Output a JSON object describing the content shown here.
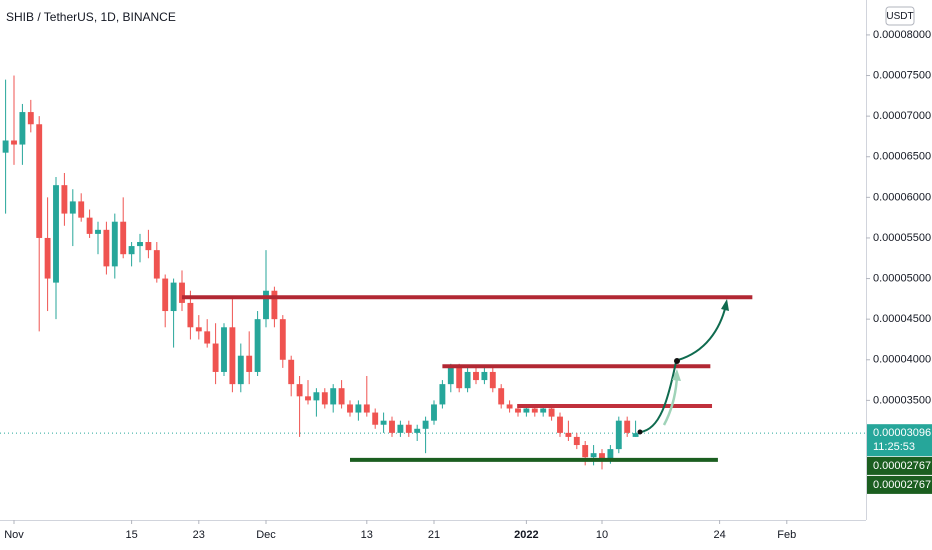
{
  "chart_data": {
    "type": "candlestick",
    "title": "SHIB / TetherUS, 1D, BINANCE",
    "currency": "USDT",
    "up_color": "#26a69a",
    "down_color": "#ef5350",
    "xlim": [
      -1.667,
      101.43
    ],
    "ylim": [
      2.027e-05,
      8.43e-05
    ],
    "xticks": [
      {
        "value": 0,
        "label": "Nov"
      },
      {
        "value": 14,
        "label": "15"
      },
      {
        "value": 22,
        "label": "23"
      },
      {
        "value": 30,
        "label": "Dec"
      },
      {
        "value": 42,
        "label": "13"
      },
      {
        "value": 50,
        "label": "21"
      },
      {
        "value": 61,
        "label": "2022"
      },
      {
        "value": 70,
        "label": "10"
      },
      {
        "value": 84,
        "label": "24"
      },
      {
        "value": 92,
        "label": "Feb"
      }
    ],
    "yticks": [
      {
        "value": 3.5e-05,
        "label": "0.00003500"
      },
      {
        "value": 4e-05,
        "label": "0.00004000"
      },
      {
        "value": 4.5e-05,
        "label": "0.00004500"
      },
      {
        "value": 5e-05,
        "label": "0.00005000"
      },
      {
        "value": 5.5e-05,
        "label": "0.00005500"
      },
      {
        "value": 6e-05,
        "label": "0.00006000"
      },
      {
        "value": 6.5e-05,
        "label": "0.00006500"
      },
      {
        "value": 7e-05,
        "label": "0.00007000"
      },
      {
        "value": 7.5e-05,
        "label": "0.00007500"
      },
      {
        "value": 8e-05,
        "label": "0.00008000"
      }
    ],
    "x": [
      -1,
      0,
      1,
      2,
      3,
      4,
      5,
      6,
      7,
      8,
      9,
      10,
      11,
      12,
      13,
      14,
      15,
      16,
      17,
      18,
      19,
      20,
      21,
      22,
      23,
      24,
      25,
      26,
      27,
      28,
      29,
      30,
      31,
      32,
      33,
      34,
      35,
      36,
      37,
      38,
      39,
      40,
      41,
      42,
      43,
      44,
      45,
      46,
      47,
      48,
      49,
      50,
      51,
      52,
      53,
      54,
      55,
      56,
      57,
      58,
      59,
      60,
      61,
      62,
      63,
      64,
      65,
      66,
      67,
      68,
      69,
      70,
      71,
      72,
      73,
      74
    ],
    "open": [
      6.55e-05,
      6.7e-05,
      6.65e-05,
      7.05e-05,
      6.9e-05,
      5.5e-05,
      4.95e-05,
      6.15e-05,
      5.8e-05,
      5.95e-05,
      5.75e-05,
      5.55e-05,
      5.6e-05,
      5.15e-05,
      5.7e-05,
      5.3e-05,
      5.4e-05,
      5.45e-05,
      5.35e-05,
      5e-05,
      4.6e-05,
      4.95e-05,
      4.7e-05,
      4.4e-05,
      4.35e-05,
      4.2e-05,
      3.85e-05,
      4.4e-05,
      3.7e-05,
      4.05e-05,
      3.85e-05,
      4.5e-05,
      4.85e-05,
      4.5e-05,
      4e-05,
      3.7e-05,
      3.55e-05,
      3.5e-05,
      3.6e-05,
      3.45e-05,
      3.65e-05,
      3.45e-05,
      3.35e-05,
      3.45e-05,
      3.35e-05,
      3.2e-05,
      3.25e-05,
      3.1e-05,
      3.2e-05,
      3.1e-05,
      3.15e-05,
      3.25e-05,
      3.45e-05,
      3.7e-05,
      3.9e-05,
      3.65e-05,
      3.85e-05,
      3.75e-05,
      3.85e-05,
      3.65e-05,
      3.45e-05,
      3.4e-05,
      3.35e-05,
      3.4e-05,
      3.35e-05,
      3.4e-05,
      3.3e-05,
      3.1e-05,
      3.05e-05,
      2.95e-05,
      2.8e-05,
      2.85e-05,
      2.75e-05,
      2.9e-05,
      3.25e-05,
      3.05e-05
    ],
    "high": [
      7.45e-05,
      7.5e-05,
      7.15e-05,
      7.2e-05,
      7e-05,
      6e-05,
      6.25e-05,
      6.3e-05,
      6.1e-05,
      6.05e-05,
      5.85e-05,
      5.7e-05,
      5.7e-05,
      5.8e-05,
      6e-05,
      5.45e-05,
      5.55e-05,
      5.6e-05,
      5.45e-05,
      5.05e-05,
      5e-05,
      5.1e-05,
      4.85e-05,
      4.55e-05,
      4.5e-05,
      4.45e-05,
      4.45e-05,
      4.75e-05,
      4.2e-05,
      4.35e-05,
      4.6e-05,
      5.35e-05,
      4.9e-05,
      4.55e-05,
      4.05e-05,
      3.8e-05,
      3.75e-05,
      3.65e-05,
      3.65e-05,
      3.7e-05,
      3.75e-05,
      3.5e-05,
      3.5e-05,
      3.8e-05,
      3.4e-05,
      3.35e-05,
      3.3e-05,
      3.25e-05,
      3.25e-05,
      3.2e-05,
      3.3e-05,
      3.5e-05,
      3.75e-05,
      3.95e-05,
      3.95e-05,
      3.9e-05,
      3.9e-05,
      3.9e-05,
      3.9e-05,
      3.7e-05,
      3.5e-05,
      3.45e-05,
      3.45e-05,
      3.45e-05,
      3.45e-05,
      3.45e-05,
      3.35e-05,
      3.25e-05,
      3.1e-05,
      3e-05,
      2.95e-05,
      2.9e-05,
      2.95e-05,
      3.3e-05,
      3.3e-05,
      3.25e-05
    ],
    "low": [
      5.8e-05,
      6.4e-05,
      6.4e-05,
      6.8e-05,
      4.35e-05,
      4.6e-05,
      4.5e-05,
      5.65e-05,
      5.4e-05,
      5.7e-05,
      5.5e-05,
      5.3e-05,
      5.05e-05,
      5e-05,
      5.25e-05,
      5.15e-05,
      5.2e-05,
      5.25e-05,
      4.95e-05,
      4.4e-05,
      4.15e-05,
      4.6e-05,
      4.25e-05,
      4.25e-05,
      4.15e-05,
      3.7e-05,
      3.8e-05,
      3.6e-05,
      3.6e-05,
      3.7e-05,
      3.8e-05,
      4.4e-05,
      4.4e-05,
      3.9e-05,
      3.55e-05,
      3.05e-05,
      3.45e-05,
      3.3e-05,
      3.4e-05,
      3.35e-05,
      3.4e-05,
      3.3e-05,
      3.25e-05,
      3.3e-05,
      3.15e-05,
      3.1e-05,
      3.05e-05,
      3.05e-05,
      3.05e-05,
      3e-05,
      2.85e-05,
      3.2e-05,
      3.4e-05,
      3.6e-05,
      3.6e-05,
      3.6e-05,
      3.7e-05,
      3.7e-05,
      3.6e-05,
      3.4e-05,
      3.35e-05,
      3.3e-05,
      3.3e-05,
      3.3e-05,
      3.3e-05,
      3.25e-05,
      3.05e-05,
      3e-05,
      2.9e-05,
      2.7e-05,
      2.7e-05,
      2.65e-05,
      2.72e-05,
      2.85e-05,
      3.05e-05,
      3.05e-05
    ],
    "close": [
      6.7e-05,
      6.65e-05,
      7.05e-05,
      6.9e-05,
      5.5e-05,
      5e-05,
      6.15e-05,
      5.8e-05,
      5.95e-05,
      5.75e-05,
      5.55e-05,
      5.6e-05,
      5.15e-05,
      5.7e-05,
      5.3e-05,
      5.4e-05,
      5.45e-05,
      5.35e-05,
      5e-05,
      4.6e-05,
      4.95e-05,
      4.7e-05,
      4.4e-05,
      4.35e-05,
      4.2e-05,
      3.85e-05,
      4.4e-05,
      3.7e-05,
      4.05e-05,
      3.85e-05,
      4.5e-05,
      4.85e-05,
      4.5e-05,
      4e-05,
      3.7e-05,
      3.55e-05,
      3.5e-05,
      3.6e-05,
      3.45e-05,
      3.65e-05,
      3.45e-05,
      3.35e-05,
      3.45e-05,
      3.35e-05,
      3.2e-05,
      3.25e-05,
      3.1e-05,
      3.2e-05,
      3.1e-05,
      3.15e-05,
      3.25e-05,
      3.45e-05,
      3.7e-05,
      3.9e-05,
      3.65e-05,
      3.85e-05,
      3.75e-05,
      3.85e-05,
      3.65e-05,
      3.45e-05,
      3.4e-05,
      3.35e-05,
      3.4e-05,
      3.35e-05,
      3.4e-05,
      3.3e-05,
      3.1e-05,
      3.05e-05,
      2.95e-05,
      2.8e-05,
      2.85e-05,
      2.75e-05,
      2.9e-05,
      3.25e-05,
      3.1e-05,
      3.096e-05
    ],
    "levels": [
      {
        "value": 4.77e-05,
        "x": [
          20,
          87.9
        ],
        "color": "#b22833"
      },
      {
        "value": 3.92e-05,
        "x": [
          51,
          82.9
        ],
        "color": "#b22833"
      },
      {
        "value": 3.43e-05,
        "x": [
          59.9,
          83.1
        ],
        "color": "#c0303c"
      },
      {
        "value": 2.767e-05,
        "x": [
          40,
          83.8
        ],
        "color": "#1b5e20"
      }
    ],
    "last_price": {
      "value": 3.096e-05,
      "label": "0.00003096",
      "countdown": "11:25:53",
      "color": "#26a69a"
    },
    "price_tags": [
      {
        "value": 2.767e-05,
        "label": "0.00002767"
      },
      {
        "value": 2.767e-05,
        "label": "0.00002767"
      }
    ],
    "tag_color": "#1b5e20"
  }
}
